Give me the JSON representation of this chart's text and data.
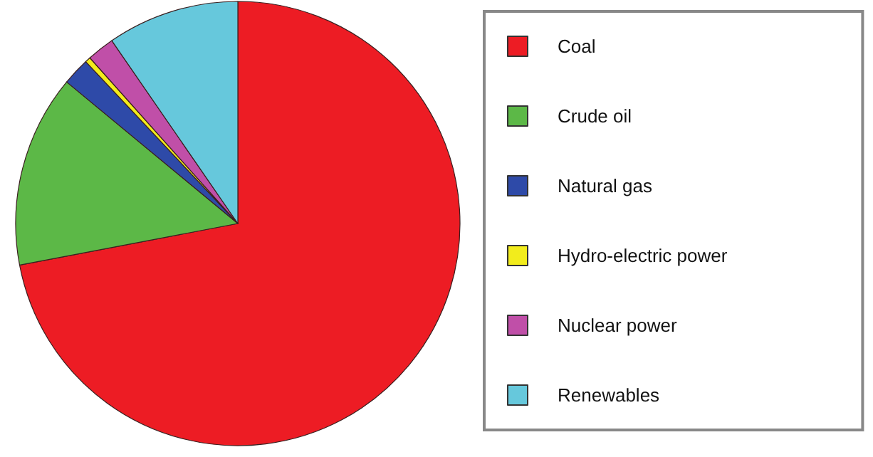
{
  "chart_data": {
    "type": "pie",
    "categories": [
      "Coal",
      "Crude oil",
      "Natural gas",
      "Hydro-electric power",
      "Nuclear power",
      "Renewables"
    ],
    "values": [
      72,
      14,
      2,
      0.4,
      2,
      9.6
    ],
    "colors": [
      "#ed1c24",
      "#5cb847",
      "#2e4aa8",
      "#f2ec1c",
      "#c04fa8",
      "#66c8dc"
    ],
    "legend": "right"
  }
}
